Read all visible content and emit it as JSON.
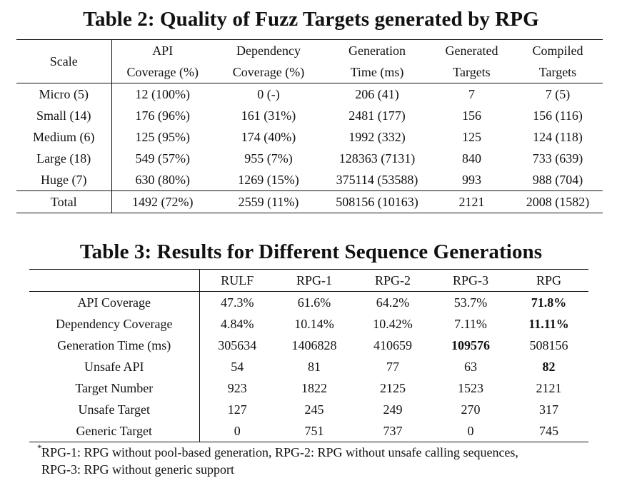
{
  "table2": {
    "title": "Table 2: Quality of Fuzz Targets generated by RPG",
    "headers": [
      {
        "line1": "Scale",
        "line2": ""
      },
      {
        "line1": "API",
        "line2": "Coverage (%)"
      },
      {
        "line1": "Dependency",
        "line2": "Coverage (%)"
      },
      {
        "line1": "Generation",
        "line2": "Time (ms)"
      },
      {
        "line1": "Generated",
        "line2": "Targets"
      },
      {
        "line1": "Compiled",
        "line2": "Targets"
      }
    ],
    "rows": [
      [
        "Micro (5)",
        "12 (100%)",
        "0 (-)",
        "206 (41)",
        "7",
        "7 (5)"
      ],
      [
        "Small (14)",
        "176 (96%)",
        "161 (31%)",
        "2481 (177)",
        "156",
        "156 (116)"
      ],
      [
        "Medium (6)",
        "125 (95%)",
        "174 (40%)",
        "1992 (332)",
        "125",
        "124 (118)"
      ],
      [
        "Large (18)",
        "549 (57%)",
        "955 (7%)",
        "128363 (7131)",
        "840",
        "733 (639)"
      ],
      [
        "Huge (7)",
        "630 (80%)",
        "1269 (15%)",
        "375114 (53588)",
        "993",
        "988 (704)"
      ]
    ],
    "total": [
      "Total",
      "1492 (72%)",
      "2559 (11%)",
      "508156 (10163)",
      "2121",
      "2008 (1582)"
    ]
  },
  "table3": {
    "title": "Table 3: Results for Different Sequence Generations",
    "headers": [
      "",
      "RULF",
      "RPG-1",
      "RPG-2",
      "RPG-3",
      "RPG"
    ],
    "rows": [
      [
        "API Coverage",
        "47.3%",
        "61.6%",
        "64.2%",
        "53.7%",
        "71.8%"
      ],
      [
        "Dependency Coverage",
        "4.84%",
        "10.14%",
        "10.42%",
        "7.11%",
        "11.11%"
      ],
      [
        "Generation Time (ms)",
        "305634",
        "1406828",
        "410659",
        "109576",
        "508156"
      ],
      [
        "Unsafe API",
        "54",
        "81",
        "77",
        "63",
        "82"
      ],
      [
        "Target Number",
        "923",
        "1822",
        "2125",
        "1523",
        "2121"
      ],
      [
        "Unsafe Target",
        "127",
        "245",
        "249",
        "270",
        "317"
      ],
      [
        "Generic Target",
        "0",
        "751",
        "737",
        "0",
        "745"
      ]
    ]
  },
  "footnote": {
    "marker": "*",
    "line1": "RPG-1: RPG without pool-based generation, RPG-2: RPG without unsafe calling sequences,",
    "line2": "RPG-3: RPG without generic support"
  }
}
